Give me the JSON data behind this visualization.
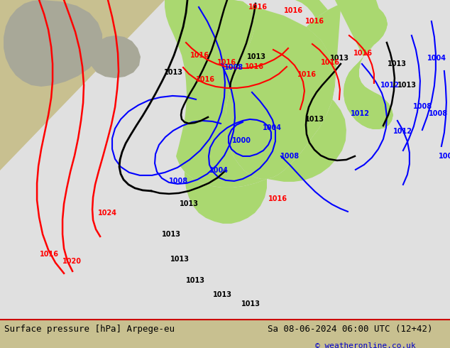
{
  "title_left": "Surface pressure [hPa] Arpege-eu",
  "title_right": "Sa 08-06-2024 06:00 UTC (12+42)",
  "credit": "© weatheronline.co.uk",
  "land_color": "#c8c880",
  "ocean_color": "#e0e0e0",
  "model_area_color": "#f0f0f0",
  "green_land_color": "#a8d870",
  "gray_land_color": "#b8b8b8",
  "tan_land_color": "#c8c090",
  "bottom_bar_color": "#e0e0e0",
  "credit_color": "#0000cc",
  "figsize": [
    6.34,
    4.9
  ],
  "dpi": 100
}
